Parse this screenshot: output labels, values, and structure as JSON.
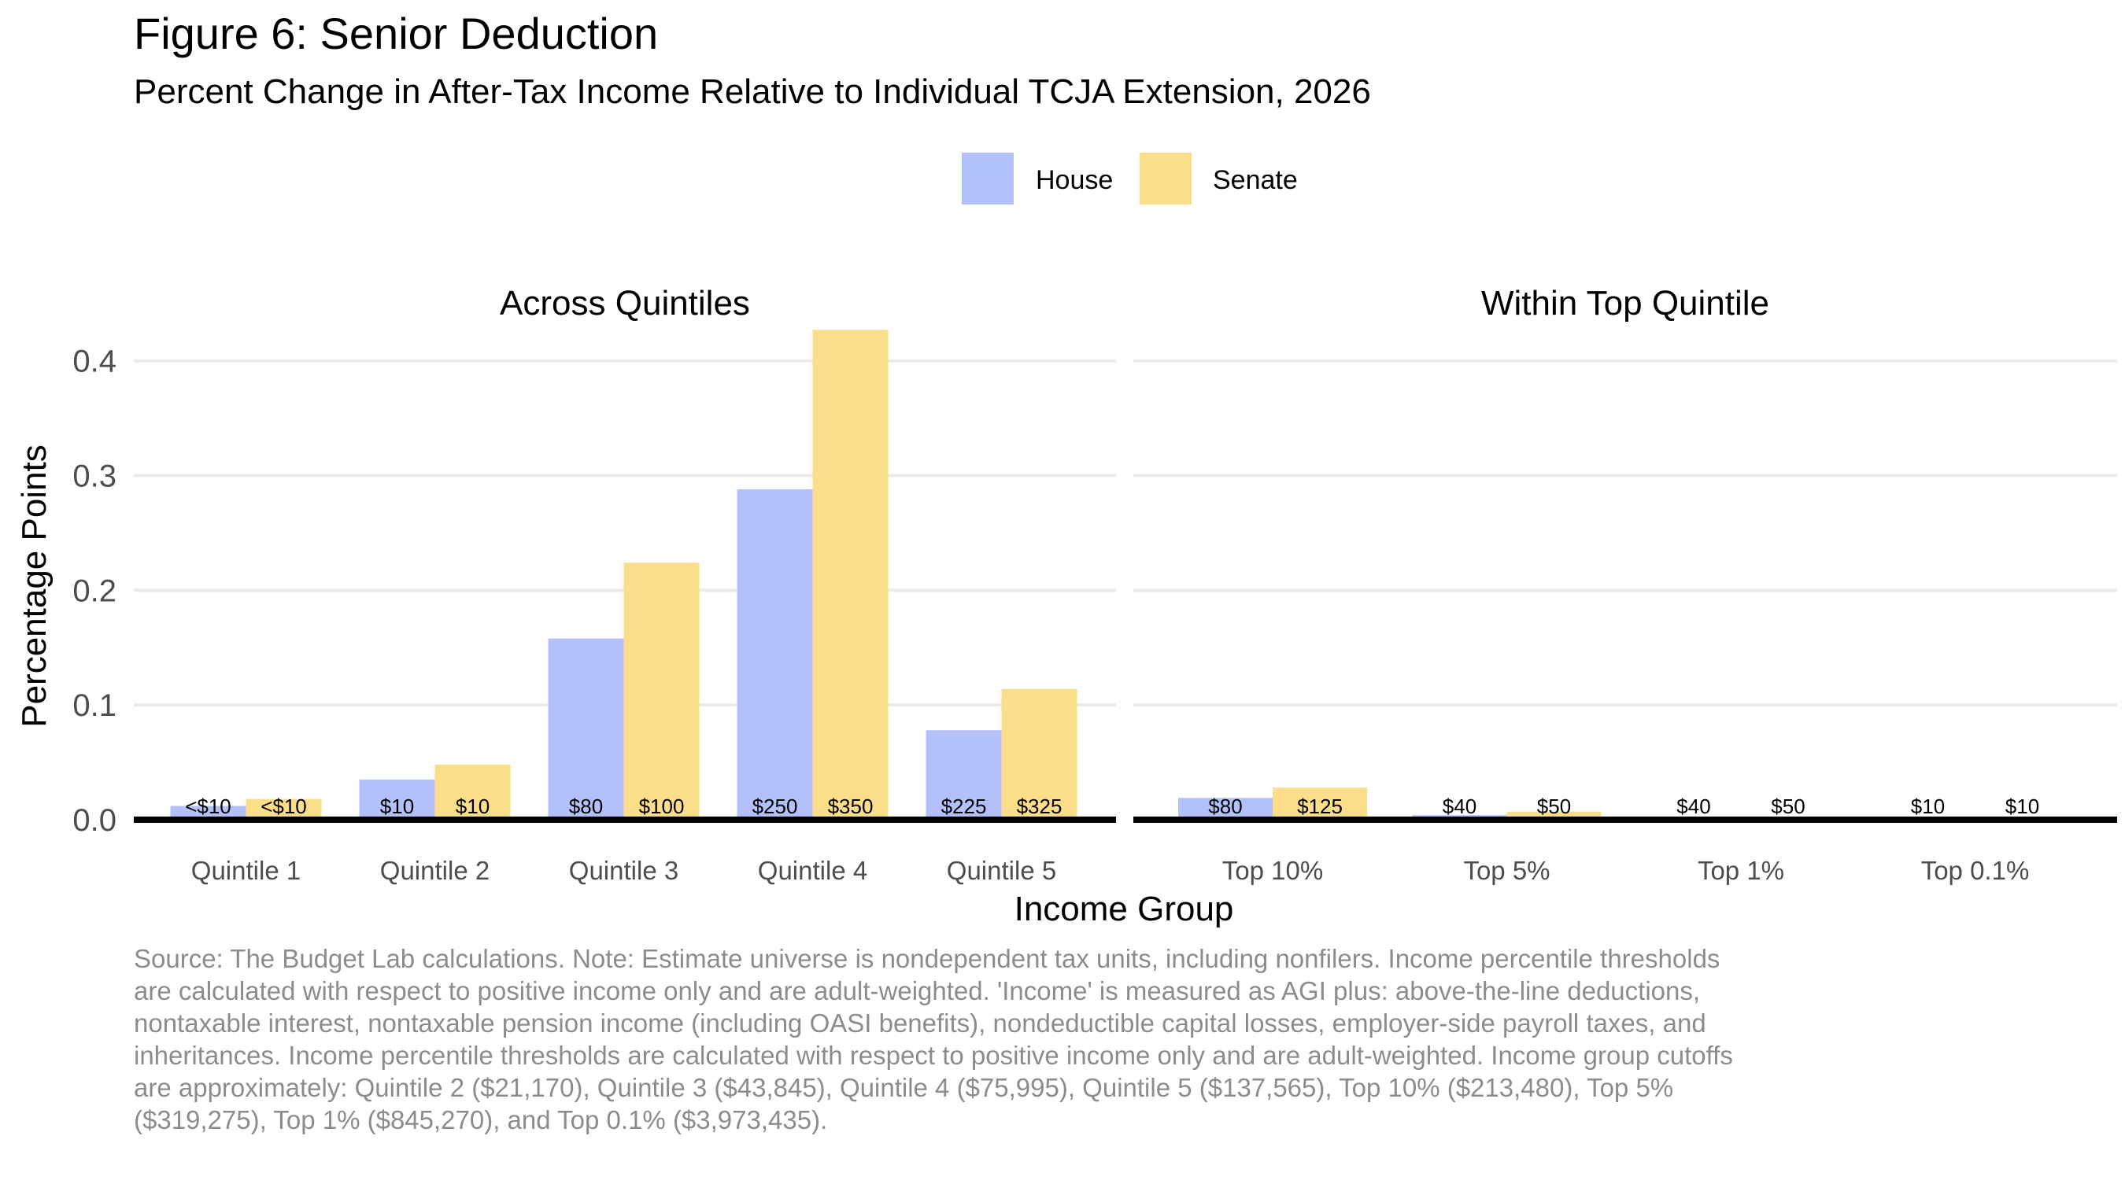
{
  "title": "Figure 6: Senior Deduction",
  "subtitle": "Percent Change in After-Tax Income Relative to Individual TCJA Extension, 2026",
  "source_note": "Source: The Budget Lab calculations. Note: Estimate universe is nondependent tax units, including nonfilers. Income percentile thresholds are calculated with respect to positive income only and are adult-weighted. 'Income' is measured as AGI plus: above-the-line deductions, nontaxable interest, nontaxable pension income (including OASI benefits), nondeductible capital losses, employer-side payroll taxes, and inheritances. Income percentile thresholds are calculated with respect to positive income only and are adult-weighted. Income group cutoffs are approximately: Quintile 2 ($21,170), Quintile 3 ($43,845), Quintile 4 ($75,995), Quintile 5 ($137,565), Top 10% ($213,480), Top 5% ($319,275), Top 1% ($845,270), and Top 0.1% ($3,973,435).",
  "chart_data": {
    "type": "bar",
    "xlabel": "Income Group",
    "ylabel": "Percentage Points",
    "ylim": [
      0,
      0.43
    ],
    "yticks": [
      0.0,
      0.1,
      0.2,
      0.3,
      0.4
    ],
    "ytick_labels": [
      "0.0",
      "0.1",
      "0.2",
      "0.3",
      "0.4"
    ],
    "grid": true,
    "legend": {
      "position": "top-center",
      "entries": [
        "House",
        "Senate"
      ]
    },
    "colors": {
      "House": "#b3c1fb",
      "Senate": "#fcdd89"
    },
    "series_names": [
      "House",
      "Senate"
    ],
    "panels": [
      {
        "title": "Across Quintiles",
        "categories": [
          "Quintile 1",
          "Quintile 2",
          "Quintile 3",
          "Quintile 4",
          "Quintile 5"
        ],
        "series": [
          {
            "name": "House",
            "values": [
              0.012,
              0.035,
              0.158,
              0.288,
              0.078
            ],
            "labels": [
              "<$10",
              "$10",
              "$80",
              "$250",
              "$225"
            ]
          },
          {
            "name": "Senate",
            "values": [
              0.018,
              0.048,
              0.224,
              0.427,
              0.114
            ],
            "labels": [
              "<$10",
              "$10",
              "$100",
              "$350",
              "$325"
            ]
          }
        ]
      },
      {
        "title": "Within Top Quintile",
        "categories": [
          "Top 10%",
          "Top 5%",
          "Top 1%",
          "Top 0.1%"
        ],
        "series": [
          {
            "name": "House",
            "values": [
              0.019,
              0.004,
              0.0,
              0.0
            ],
            "labels": [
              "$80",
              "$40",
              "$40",
              "$10"
            ]
          },
          {
            "name": "Senate",
            "values": [
              0.028,
              0.007,
              0.0,
              0.0
            ],
            "labels": [
              "$125",
              "$50",
              "$50",
              "$10"
            ]
          }
        ]
      }
    ]
  }
}
